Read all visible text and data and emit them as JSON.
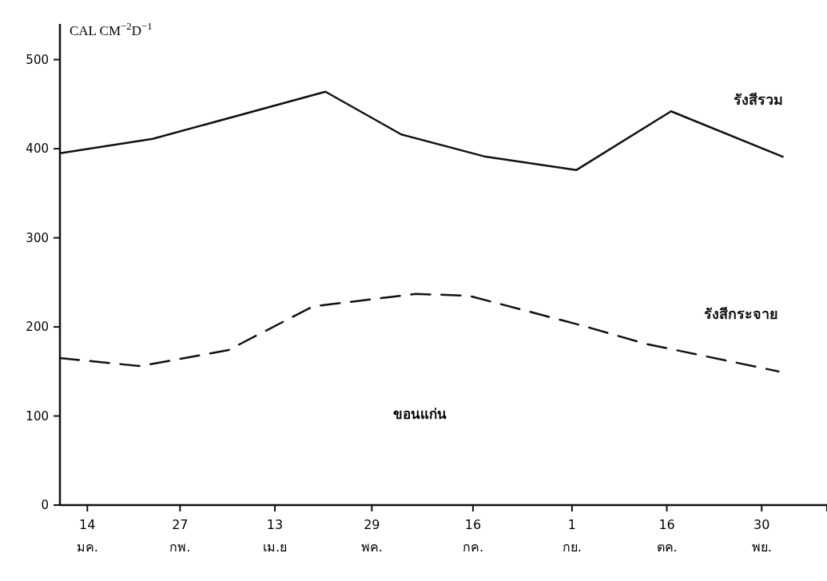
{
  "chart_data": {
    "type": "line",
    "ylabel": "CAL CM$^{−2}$D$^{−1}$",
    "xlim": [
      "--01-01",
      "--12-31"
    ],
    "xticks": [
      {
        "value": "--01-14",
        "label": "14\nมค."
      },
      {
        "value": "--02-27",
        "label": "27\nกพ."
      },
      {
        "value": "--04-13",
        "label": "13\nเม.ย"
      },
      {
        "value": "--05-29",
        "label": "29\nพค."
      },
      {
        "value": "--07-16",
        "label": "16\nกค."
      },
      {
        "value": "--09-01",
        "label": "1\nกย."
      },
      {
        "value": "--10-16",
        "label": "16\nตค."
      },
      {
        "value": "--11-30",
        "label": "30\nพย."
      },
      {
        "value": "--12-31",
        "label": null
      }
    ],
    "ylim": [
      0,
      540
    ],
    "yticks": [
      0,
      100,
      200,
      300,
      400,
      500
    ],
    "series": [
      {
        "name": "รังสีรวม",
        "color": "#111111",
        "line_style": "solid",
        "x": [
          "--01-01",
          "--02-14",
          "--05-07",
          "--06-12",
          "--07-22",
          "--09-03",
          "--10-18",
          "--12-10"
        ],
        "values": [
          395,
          411,
          464,
          416,
          391,
          376,
          442,
          391
        ]
      },
      {
        "name": "รังสีกระจาย",
        "color": "#111111",
        "line_style": "dashed",
        "x": [
          "--01-01",
          "--02-08",
          "--03-22",
          "--05-01",
          "--06-19",
          "--07-14",
          "--09-05",
          "--10-06",
          "--12-08"
        ],
        "values": [
          165,
          156,
          174,
          223,
          237,
          235,
          202,
          181,
          150
        ]
      }
    ],
    "annotations": [
      "ขอนแก่น"
    ],
    "grid": false,
    "legend": false
  }
}
